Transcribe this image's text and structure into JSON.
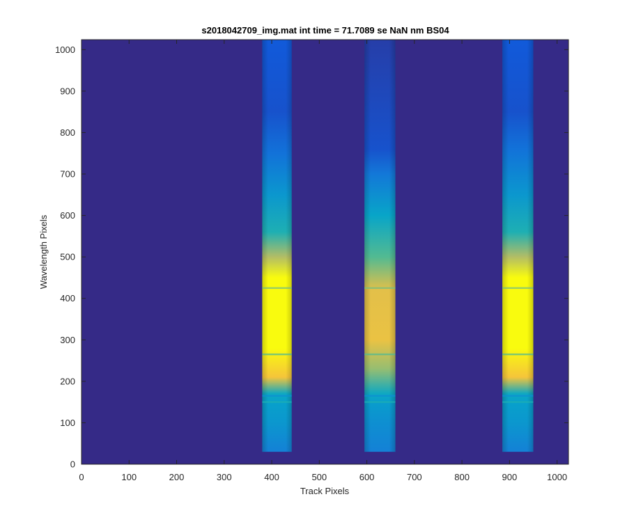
{
  "chart_data": {
    "type": "heatmap",
    "title": "s2018042709_img.mat int time = 71.7089 se  NaN nm BS04",
    "xlabel": "Track Pixels",
    "ylabel": "Wavelength Pixels",
    "xlim": [
      0,
      1024
    ],
    "ylim": [
      0,
      1024
    ],
    "xticks": [
      0,
      100,
      200,
      300,
      400,
      500,
      600,
      700,
      800,
      900,
      1000
    ],
    "yticks": [
      0,
      100,
      200,
      300,
      400,
      500,
      600,
      700,
      800,
      900,
      1000
    ],
    "grid": false,
    "colormap": [
      "#352a87",
      "#0f5cdd",
      "#1481d6",
      "#06a4ca",
      "#2eb7a4",
      "#87bf77",
      "#d1bb59",
      "#fec832",
      "#f9fb0e"
    ],
    "background_color": "#352a87",
    "tracks": [
      {
        "x_range": [
          380,
          442
        ],
        "y_range": [
          30,
          1024
        ],
        "profile": [
          {
            "y": 30,
            "level": 0.25
          },
          {
            "y": 100,
            "level": 0.33
          },
          {
            "y": 150,
            "level": 0.36
          },
          {
            "y": 170,
            "level": 0.4
          },
          {
            "y": 210,
            "level": 0.85
          },
          {
            "y": 280,
            "level": 1.0
          },
          {
            "y": 450,
            "level": 1.0
          },
          {
            "y": 500,
            "level": 0.7
          },
          {
            "y": 560,
            "level": 0.45
          },
          {
            "y": 650,
            "level": 0.33
          },
          {
            "y": 750,
            "level": 0.2
          },
          {
            "y": 850,
            "level": 0.1
          },
          {
            "y": 1024,
            "level": 0.12
          }
        ]
      },
      {
        "x_range": [
          595,
          660
        ],
        "y_range": [
          30,
          1024
        ],
        "profile": [
          {
            "y": 30,
            "level": 0.25
          },
          {
            "y": 100,
            "level": 0.3
          },
          {
            "y": 150,
            "level": 0.35
          },
          {
            "y": 170,
            "level": 0.4
          },
          {
            "y": 230,
            "level": 0.65
          },
          {
            "y": 300,
            "level": 0.82
          },
          {
            "y": 420,
            "level": 0.8
          },
          {
            "y": 500,
            "level": 0.55
          },
          {
            "y": 600,
            "level": 0.38
          },
          {
            "y": 700,
            "level": 0.22
          },
          {
            "y": 760,
            "level": 0.1
          },
          {
            "y": 1024,
            "level": 0.05
          }
        ]
      },
      {
        "x_range": [
          885,
          950
        ],
        "y_range": [
          30,
          1024
        ],
        "profile": [
          {
            "y": 30,
            "level": 0.25
          },
          {
            "y": 100,
            "level": 0.33
          },
          {
            "y": 150,
            "level": 0.36
          },
          {
            "y": 170,
            "level": 0.4
          },
          {
            "y": 210,
            "level": 0.85
          },
          {
            "y": 280,
            "level": 1.0
          },
          {
            "y": 450,
            "level": 1.0
          },
          {
            "y": 500,
            "level": 0.7
          },
          {
            "y": 560,
            "level": 0.45
          },
          {
            "y": 650,
            "level": 0.33
          },
          {
            "y": 760,
            "level": 0.2
          },
          {
            "y": 850,
            "level": 0.1
          },
          {
            "y": 1024,
            "level": 0.12
          }
        ]
      }
    ],
    "bands": [
      {
        "y": 165,
        "level": 0.3
      },
      {
        "y": 150,
        "level": 0.45
      },
      {
        "y": 265,
        "level": 0.55
      },
      {
        "y": 425,
        "level": 0.6
      }
    ]
  }
}
